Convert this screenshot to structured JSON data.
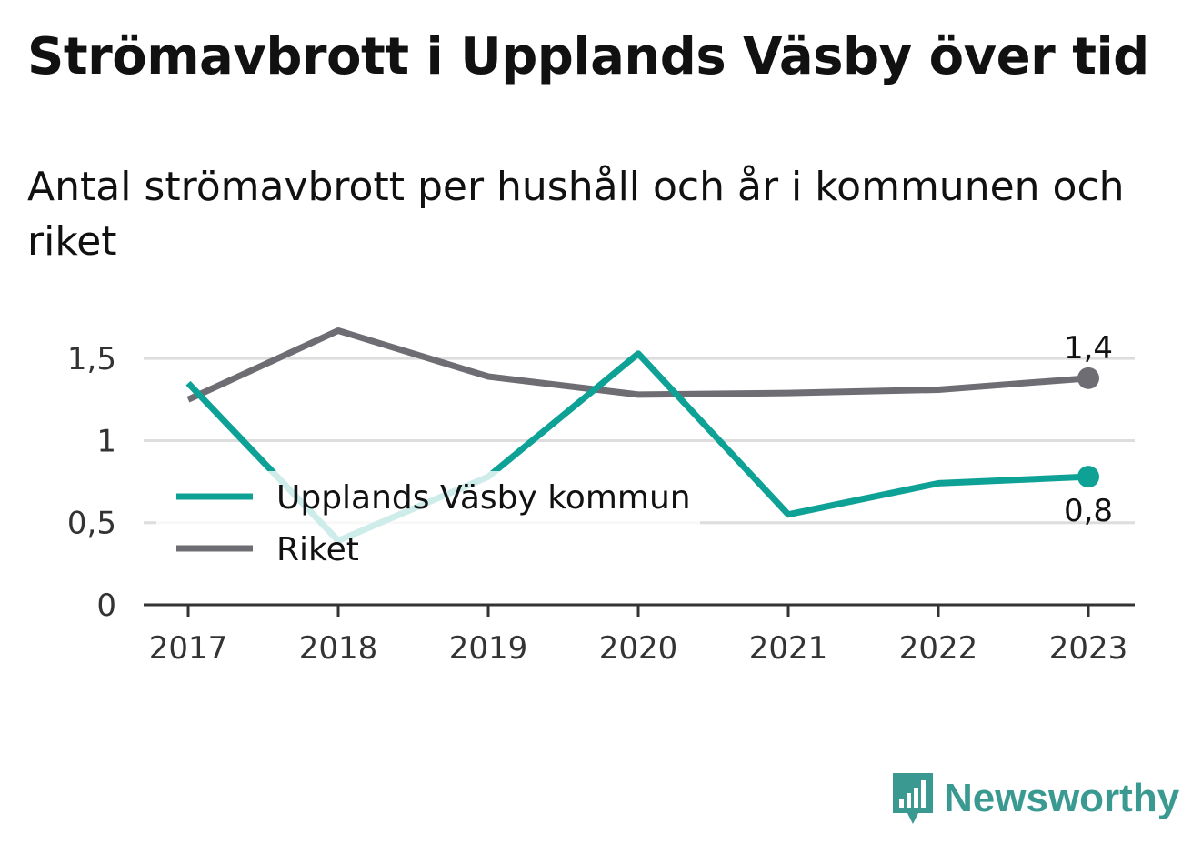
{
  "header": {
    "title": "Strömavbrott i Upplands Väsby över tid",
    "subtitle": "Antal strömavbrott per hushåll och år i kommunen och riket"
  },
  "chart_data": {
    "type": "line",
    "title": "Strömavbrott i Upplands Väsby över tid",
    "subtitle": "Antal strömavbrott per hushåll och år i kommunen och riket",
    "x": [
      "2017",
      "2018",
      "2019",
      "2020",
      "2021",
      "2022",
      "2023"
    ],
    "ylim": [
      0,
      1.8
    ],
    "yticks": [
      {
        "value": 0,
        "label": "0"
      },
      {
        "value": 0.5,
        "label": "0,5"
      },
      {
        "value": 1,
        "label": "1"
      },
      {
        "value": 1.5,
        "label": "1,5"
      }
    ],
    "grid": true,
    "legend_position": "left",
    "series": [
      {
        "name": "Upplands Väsby kommun",
        "color": "#0ea195",
        "values": [
          1.35,
          0.39,
          0.78,
          1.53,
          0.55,
          0.74,
          0.78
        ],
        "end_label": "0,8",
        "end_label_position": "below"
      },
      {
        "name": "Riket",
        "color": "#6d6d73",
        "values": [
          1.25,
          1.67,
          1.39,
          1.28,
          1.29,
          1.31,
          1.38
        ],
        "end_label": "1,4",
        "end_label_position": "above"
      }
    ]
  },
  "brand": {
    "name": "Newsworthy",
    "icon": "newsworthy-logo-icon",
    "color": "#3a9a91"
  }
}
